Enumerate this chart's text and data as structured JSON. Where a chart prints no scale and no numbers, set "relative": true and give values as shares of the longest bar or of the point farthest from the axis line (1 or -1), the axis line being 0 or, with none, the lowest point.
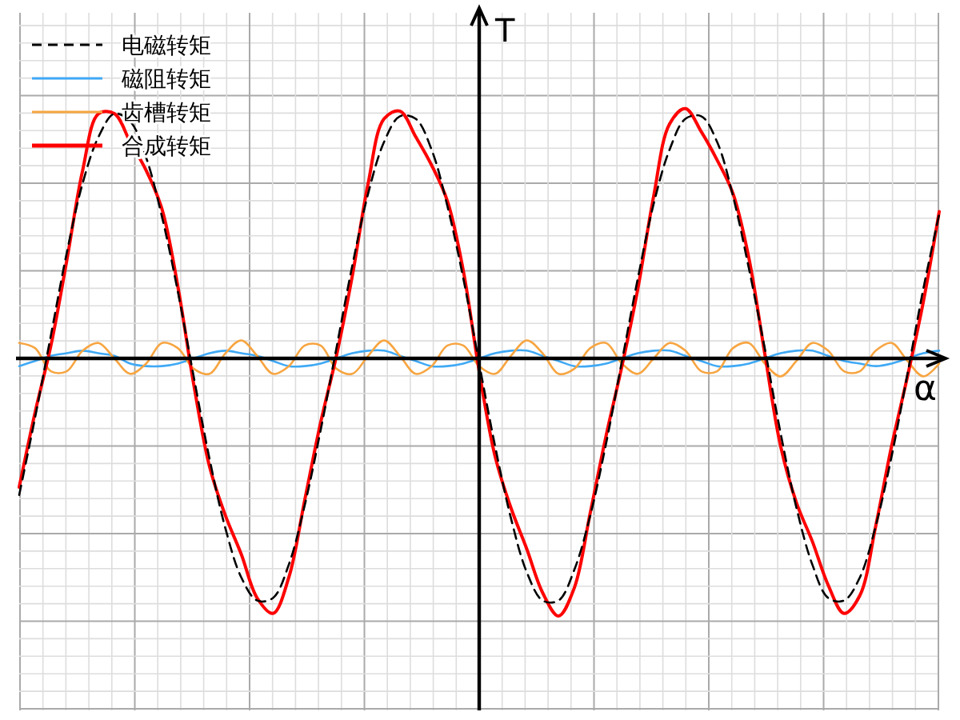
{
  "chart_data": {
    "type": "line",
    "relative": true,
    "xlabel": "α",
    "ylabel": "T",
    "grid": true,
    "legend": "top left",
    "categories": [
      null,
      null,
      null,
      null,
      null,
      null,
      null,
      null,
      null,
      null,
      null,
      null,
      null,
      null,
      null,
      null,
      null,
      null,
      null,
      null,
      null,
      null,
      null,
      null,
      null,
      null,
      null,
      null,
      null,
      null,
      null,
      null,
      null,
      null,
      null,
      null,
      null,
      null,
      null,
      null,
      null,
      null,
      null,
      null,
      null,
      null,
      null,
      null,
      null,
      null,
      null,
      null,
      null,
      null,
      null,
      null,
      null,
      null,
      null
    ],
    "series": [
      {
        "name": "电磁转矩",
        "color": "#000000",
        "line_style": "dashed",
        "values": [
          -0.53,
          -0.23,
          0.09,
          0.41,
          0.68,
          0.86,
          0.95,
          0.92,
          0.78,
          0.55,
          0.26,
          -0.07,
          -0.39,
          -0.66,
          -0.85,
          -0.94,
          -0.93,
          -0.8,
          -0.57,
          -0.28,
          0.04,
          0.36,
          0.64,
          0.84,
          0.94,
          0.93,
          0.81,
          0.59,
          0.31,
          -0.02,
          -0.34,
          -0.62,
          -0.83,
          -0.94,
          -0.94,
          -0.82,
          -0.61,
          -0.33,
          -0.01,
          0.31,
          0.6,
          0.81,
          0.93,
          0.94,
          0.84,
          0.63,
          0.35,
          0.04,
          -0.29,
          -0.58,
          -0.8,
          -0.93,
          -0.94,
          -0.85,
          -0.65,
          -0.38,
          -0.06,
          0.27,
          0.56
        ]
      },
      {
        "name": "磁阻转矩",
        "color": "#3fa9f5",
        "line_style": "solid",
        "values": [
          -0.03,
          -0.01,
          0.01,
          0.02,
          0.03,
          0.02,
          0.01,
          -0.02,
          -0.03,
          -0.03,
          -0.02,
          0.0,
          0.02,
          0.03,
          0.02,
          0.01,
          -0.01,
          -0.03,
          -0.03,
          -0.02,
          0.0,
          0.02,
          0.03,
          0.03,
          0.01,
          -0.01,
          -0.03,
          -0.03,
          -0.02,
          0.0,
          0.02,
          0.03,
          0.03,
          0.01,
          -0.01,
          -0.03,
          -0.03,
          -0.02,
          0.0,
          0.02,
          0.03,
          0.03,
          0.01,
          -0.01,
          -0.03,
          -0.03,
          -0.02,
          0.0,
          0.02,
          0.03,
          0.03,
          0.01,
          -0.01,
          -0.02,
          -0.03,
          -0.02,
          0.0,
          0.02,
          0.03
        ]
      },
      {
        "name": "齿槽转矩",
        "color": "#f7a541",
        "line_style": "solid",
        "values": [
          0.06,
          0.04,
          -0.05,
          -0.05,
          0.03,
          0.06,
          0.0,
          -0.06,
          -0.02,
          0.06,
          0.04,
          -0.04,
          -0.06,
          0.02,
          0.07,
          0.01,
          -0.06,
          -0.03,
          0.05,
          0.05,
          -0.04,
          -0.06,
          0.01,
          0.07,
          0.01,
          -0.06,
          -0.03,
          0.05,
          0.05,
          -0.03,
          -0.06,
          0.01,
          0.07,
          0.02,
          -0.06,
          -0.04,
          0.04,
          0.06,
          -0.02,
          -0.06,
          0.0,
          0.06,
          0.03,
          -0.05,
          -0.05,
          0.04,
          0.06,
          -0.02,
          -0.07,
          -0.01,
          0.06,
          0.03,
          -0.05,
          -0.05,
          0.03,
          0.06,
          -0.01,
          -0.07,
          -0.02
        ]
      },
      {
        "name": "合成转矩",
        "color": "#ff0000",
        "line_style": "solid",
        "values": [
          -0.5,
          -0.21,
          0.05,
          0.38,
          0.73,
          0.95,
          0.95,
          0.84,
          0.73,
          0.58,
          0.28,
          -0.1,
          -0.42,
          -0.61,
          -0.76,
          -0.93,
          -0.99,
          -0.85,
          -0.55,
          -0.25,
          0.01,
          0.32,
          0.68,
          0.93,
          0.96,
          0.86,
          0.75,
          0.61,
          0.34,
          -0.05,
          -0.38,
          -0.58,
          -0.74,
          -0.91,
          -1.0,
          -0.89,
          -0.6,
          -0.3,
          -0.03,
          0.27,
          0.63,
          0.91,
          0.97,
          0.88,
          0.77,
          0.64,
          0.39,
          0.02,
          -0.34,
          -0.56,
          -0.71,
          -0.88,
          -0.99,
          -0.92,
          -0.65,
          -0.34,
          -0.07,
          0.22,
          0.57
        ]
      }
    ]
  }
}
